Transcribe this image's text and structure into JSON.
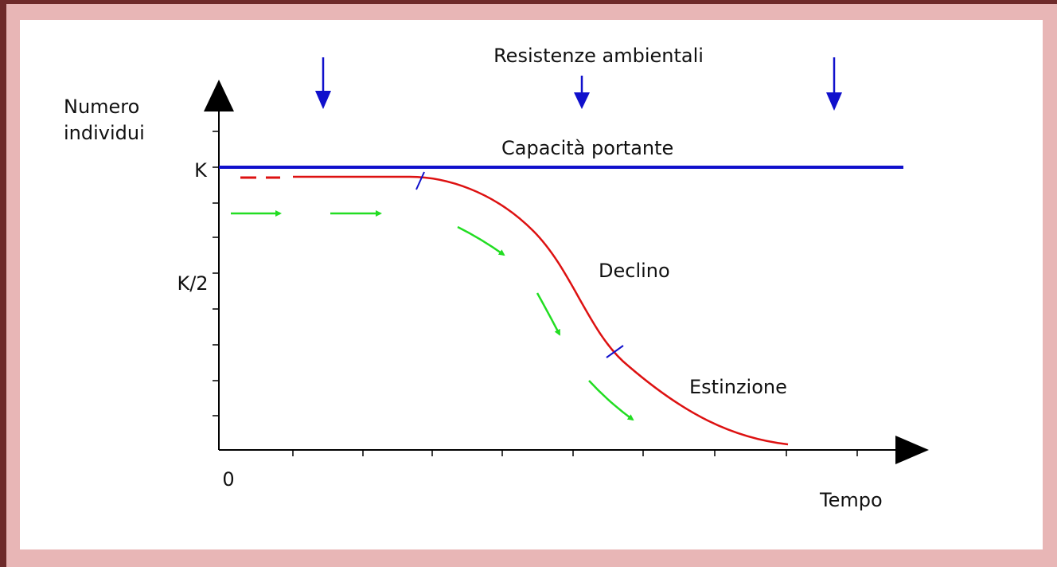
{
  "header": {
    "title": "Resistenze ambientali"
  },
  "axes": {
    "y_label": [
      "Numero",
      "individui"
    ],
    "x_label": "Tempo",
    "origin": "0",
    "y_levels": [
      "K",
      "K/2"
    ]
  },
  "labels": {
    "carrying_capacity": "Capacità portante",
    "decline": "Declino",
    "extinction": "Estinzione"
  }
}
